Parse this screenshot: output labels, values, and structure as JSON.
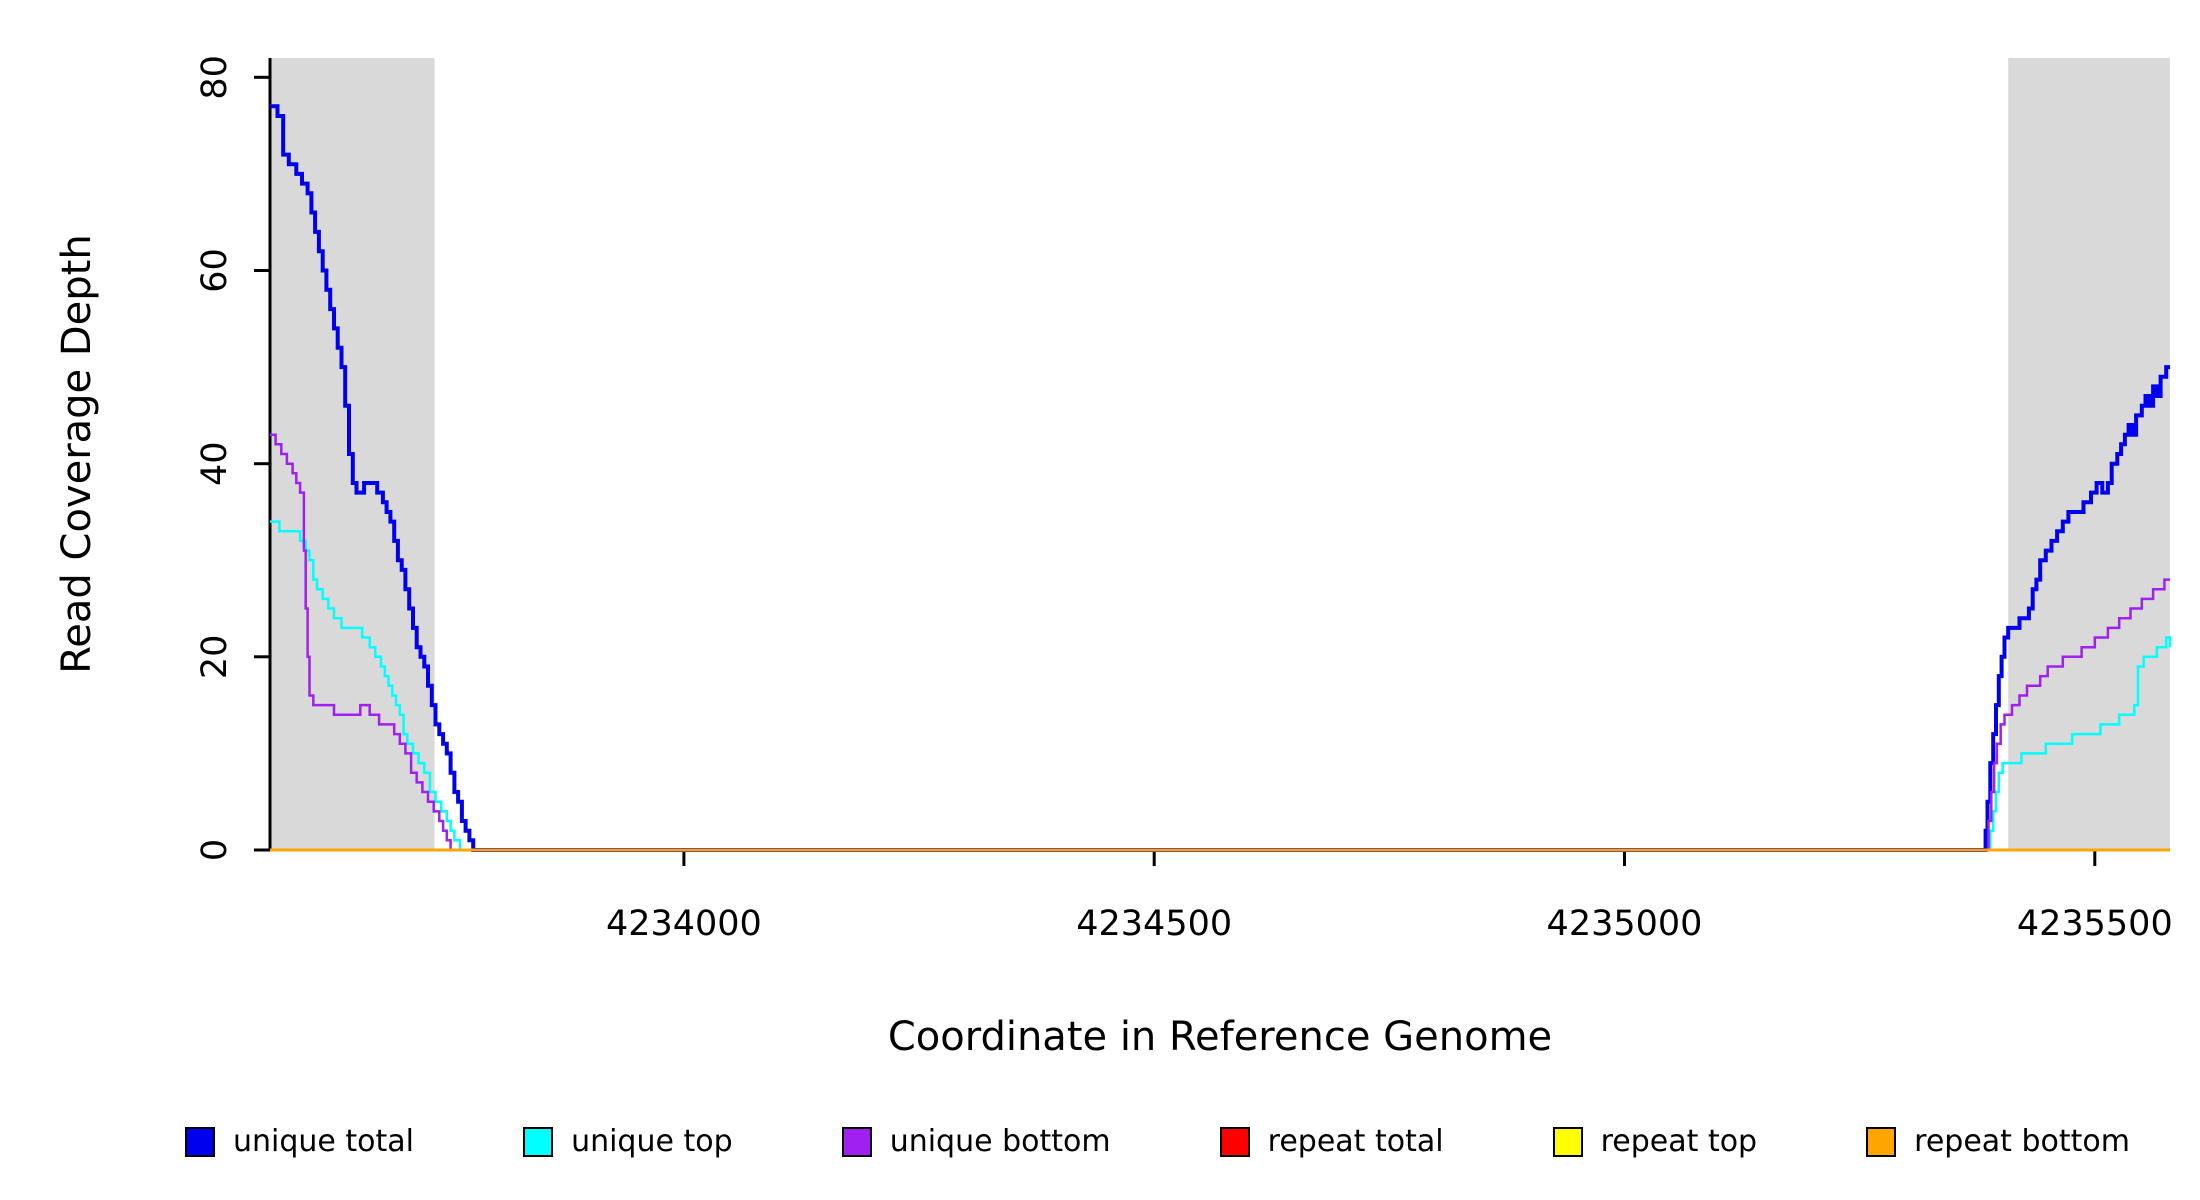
{
  "chart_data": {
    "type": "line",
    "step": true,
    "title": "",
    "xlabel": "Coordinate in Reference Genome",
    "ylabel": "Read Coverage Depth",
    "xlim": [
      4233560,
      4235580
    ],
    "ylim": [
      0,
      82
    ],
    "xticks": [
      4234000,
      4234500,
      4235000,
      4235500
    ],
    "yticks": [
      0,
      20,
      40,
      60,
      80
    ],
    "grid": false,
    "legend_position": "bottom",
    "shaded_regions": [
      {
        "x0": 4233560,
        "x1": 4233735,
        "color": "#D9D9D9"
      },
      {
        "x0": 4235408,
        "x1": 4235580,
        "color": "#D9D9D9"
      }
    ],
    "series": [
      {
        "name": "unique total",
        "color": "#0000EE",
        "width": 4,
        "points": [
          [
            4233560,
            77
          ],
          [
            4233568,
            76
          ],
          [
            4233574,
            72
          ],
          [
            4233580,
            71
          ],
          [
            4233588,
            70
          ],
          [
            4233594,
            69
          ],
          [
            4233600,
            68
          ],
          [
            4233604,
            66
          ],
          [
            4233608,
            64
          ],
          [
            4233612,
            62
          ],
          [
            4233616,
            60
          ],
          [
            4233620,
            58
          ],
          [
            4233624,
            56
          ],
          [
            4233628,
            54
          ],
          [
            4233632,
            52
          ],
          [
            4233636,
            50
          ],
          [
            4233640,
            46
          ],
          [
            4233644,
            41
          ],
          [
            4233648,
            38
          ],
          [
            4233652,
            37
          ],
          [
            4233660,
            38
          ],
          [
            4233668,
            38
          ],
          [
            4233674,
            37
          ],
          [
            4233680,
            36
          ],
          [
            4233684,
            35
          ],
          [
            4233688,
            34
          ],
          [
            4233692,
            32
          ],
          [
            4233696,
            30
          ],
          [
            4233700,
            29
          ],
          [
            4233704,
            27
          ],
          [
            4233708,
            25
          ],
          [
            4233712,
            23
          ],
          [
            4233716,
            21
          ],
          [
            4233720,
            20
          ],
          [
            4233724,
            19
          ],
          [
            4233728,
            17
          ],
          [
            4233732,
            15
          ],
          [
            4233736,
            13
          ],
          [
            4233740,
            12
          ],
          [
            4233744,
            11
          ],
          [
            4233748,
            10
          ],
          [
            4233752,
            8
          ],
          [
            4233756,
            6
          ],
          [
            4233760,
            5
          ],
          [
            4233764,
            3
          ],
          [
            4233768,
            2
          ],
          [
            4233772,
            1
          ],
          [
            4233776,
            0
          ],
          [
            4235382,
            0
          ],
          [
            4235384,
            2
          ],
          [
            4235386,
            5
          ],
          [
            4235389,
            9
          ],
          [
            4235392,
            12
          ],
          [
            4235395,
            15
          ],
          [
            4235398,
            18
          ],
          [
            4235401,
            20
          ],
          [
            4235404,
            22
          ],
          [
            4235408,
            23
          ],
          [
            4235414,
            23
          ],
          [
            4235420,
            24
          ],
          [
            4235426,
            24
          ],
          [
            4235430,
            25
          ],
          [
            4235434,
            27
          ],
          [
            4235438,
            28
          ],
          [
            4235442,
            30
          ],
          [
            4235448,
            31
          ],
          [
            4235454,
            32
          ],
          [
            4235460,
            33
          ],
          [
            4235466,
            34
          ],
          [
            4235472,
            35
          ],
          [
            4235480,
            35
          ],
          [
            4235488,
            36
          ],
          [
            4235496,
            37
          ],
          [
            4235502,
            38
          ],
          [
            4235508,
            37
          ],
          [
            4235514,
            38
          ],
          [
            4235518,
            40
          ],
          [
            4235524,
            41
          ],
          [
            4235528,
            42
          ],
          [
            4235532,
            43
          ],
          [
            4235536,
            44
          ],
          [
            4235540,
            43
          ],
          [
            4235544,
            45
          ],
          [
            4235550,
            46
          ],
          [
            4235554,
            47
          ],
          [
            4235558,
            46
          ],
          [
            4235562,
            48
          ],
          [
            4235566,
            47
          ],
          [
            4235570,
            49
          ],
          [
            4235576,
            50
          ],
          [
            4235580,
            50
          ]
        ]
      },
      {
        "name": "unique top",
        "color": "#00FFFF",
        "width": 2.5,
        "points": [
          [
            4233560,
            34
          ],
          [
            4233570,
            33
          ],
          [
            4233584,
            33
          ],
          [
            4233592,
            32
          ],
          [
            4233598,
            31
          ],
          [
            4233602,
            30
          ],
          [
            4233606,
            28
          ],
          [
            4233610,
            27
          ],
          [
            4233616,
            26
          ],
          [
            4233622,
            25
          ],
          [
            4233628,
            24
          ],
          [
            4233636,
            23
          ],
          [
            4233648,
            23
          ],
          [
            4233658,
            22
          ],
          [
            4233666,
            21
          ],
          [
            4233672,
            20
          ],
          [
            4233678,
            19
          ],
          [
            4233682,
            18
          ],
          [
            4233686,
            17
          ],
          [
            4233690,
            16
          ],
          [
            4233694,
            15
          ],
          [
            4233698,
            14
          ],
          [
            4233702,
            12
          ],
          [
            4233706,
            11
          ],
          [
            4233712,
            10
          ],
          [
            4233718,
            9
          ],
          [
            4233724,
            8
          ],
          [
            4233730,
            6
          ],
          [
            4233736,
            5
          ],
          [
            4233742,
            4
          ],
          [
            4233748,
            3
          ],
          [
            4233752,
            2
          ],
          [
            4233756,
            1
          ],
          [
            4233762,
            0
          ],
          [
            4235386,
            0
          ],
          [
            4235389,
            2
          ],
          [
            4235392,
            4
          ],
          [
            4235395,
            6
          ],
          [
            4235398,
            8
          ],
          [
            4235402,
            9
          ],
          [
            4235412,
            9
          ],
          [
            4235422,
            10
          ],
          [
            4235436,
            10
          ],
          [
            4235448,
            11
          ],
          [
            4235462,
            11
          ],
          [
            4235476,
            12
          ],
          [
            4235494,
            12
          ],
          [
            4235506,
            13
          ],
          [
            4235518,
            13
          ],
          [
            4235526,
            14
          ],
          [
            4235536,
            14
          ],
          [
            4235542,
            15
          ],
          [
            4235546,
            19
          ],
          [
            4235552,
            20
          ],
          [
            4235560,
            20
          ],
          [
            4235566,
            21
          ],
          [
            4235572,
            21
          ],
          [
            4235576,
            22
          ],
          [
            4235580,
            21
          ]
        ]
      },
      {
        "name": "unique bottom",
        "color": "#A020F0",
        "width": 2.5,
        "points": [
          [
            4233560,
            43
          ],
          [
            4233566,
            42
          ],
          [
            4233572,
            41
          ],
          [
            4233578,
            40
          ],
          [
            4233584,
            39
          ],
          [
            4233588,
            38
          ],
          [
            4233592,
            37
          ],
          [
            4233596,
            31
          ],
          [
            4233598,
            25
          ],
          [
            4233600,
            20
          ],
          [
            4233602,
            16
          ],
          [
            4233606,
            15
          ],
          [
            4233618,
            15
          ],
          [
            4233628,
            14
          ],
          [
            4233644,
            14
          ],
          [
            4233656,
            15
          ],
          [
            4233666,
            14
          ],
          [
            4233676,
            13
          ],
          [
            4233686,
            13
          ],
          [
            4233692,
            12
          ],
          [
            4233698,
            11
          ],
          [
            4233704,
            10
          ],
          [
            4233710,
            8
          ],
          [
            4233716,
            7
          ],
          [
            4233722,
            6
          ],
          [
            4233728,
            5
          ],
          [
            4233734,
            4
          ],
          [
            4233740,
            3
          ],
          [
            4233744,
            2
          ],
          [
            4233748,
            1
          ],
          [
            4233752,
            0
          ],
          [
            4235384,
            0
          ],
          [
            4235387,
            3
          ],
          [
            4235390,
            6
          ],
          [
            4235393,
            9
          ],
          [
            4235396,
            11
          ],
          [
            4235400,
            13
          ],
          [
            4235404,
            14
          ],
          [
            4235412,
            15
          ],
          [
            4235420,
            16
          ],
          [
            4235428,
            17
          ],
          [
            4235436,
            17
          ],
          [
            4235442,
            18
          ],
          [
            4235450,
            19
          ],
          [
            4235458,
            19
          ],
          [
            4235466,
            20
          ],
          [
            4235478,
            20
          ],
          [
            4235486,
            21
          ],
          [
            4235494,
            21
          ],
          [
            4235500,
            22
          ],
          [
            4235508,
            22
          ],
          [
            4235514,
            23
          ],
          [
            4235520,
            23
          ],
          [
            4235526,
            24
          ],
          [
            4235532,
            24
          ],
          [
            4235538,
            25
          ],
          [
            4235544,
            25
          ],
          [
            4235550,
            26
          ],
          [
            4235556,
            26
          ],
          [
            4235562,
            27
          ],
          [
            4235568,
            27
          ],
          [
            4235574,
            28
          ],
          [
            4235580,
            28
          ]
        ]
      },
      {
        "name": "repeat total",
        "color": "#FF0000",
        "width": 2.5,
        "points": [
          [
            4233560,
            0
          ],
          [
            4235580,
            0
          ]
        ]
      },
      {
        "name": "repeat top",
        "color": "#FFFF00",
        "width": 2.5,
        "points": [
          [
            4233560,
            0
          ],
          [
            4235580,
            0
          ]
        ]
      },
      {
        "name": "repeat bottom",
        "color": "#FFA500",
        "width": 3,
        "points": [
          [
            4233560,
            0
          ],
          [
            4235580,
            0
          ]
        ]
      }
    ]
  },
  "legend": {
    "items": [
      {
        "label": "unique total",
        "color": "#0000EE"
      },
      {
        "label": "unique top",
        "color": "#00FFFF"
      },
      {
        "label": "unique bottom",
        "color": "#A020F0"
      },
      {
        "label": "repeat total",
        "color": "#FF0000"
      },
      {
        "label": "repeat top",
        "color": "#FFFF00"
      },
      {
        "label": "repeat bottom",
        "color": "#FFA500"
      }
    ]
  }
}
